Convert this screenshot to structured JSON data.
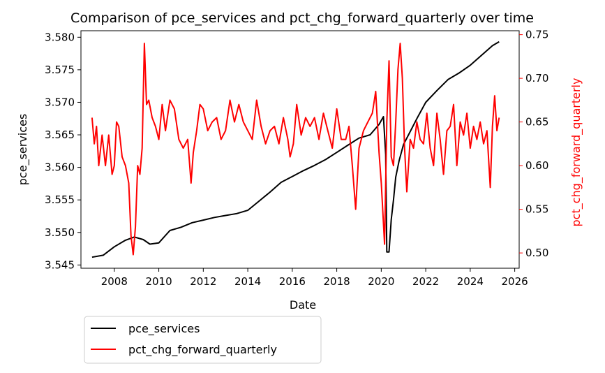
{
  "chart_data": {
    "type": "line",
    "title": "Comparison of pce_services and pct_chg_forward_quarterly over time",
    "xlabel": "Date",
    "ylabel_left": "pce_services",
    "ylabel_right": "pct_chg_forward_quarterly",
    "x_ticks": [
      "2008",
      "2010",
      "2012",
      "2014",
      "2016",
      "2018",
      "2020",
      "2022",
      "2024",
      "2026"
    ],
    "xlim": [
      2006.5,
      2026.2
    ],
    "ylim_left": [
      3.5445,
      3.581
    ],
    "ylim_right": [
      0.4825,
      0.7545
    ],
    "y_ticks_left": [
      "3.545",
      "3.550",
      "3.555",
      "3.560",
      "3.565",
      "3.570",
      "3.575",
      "3.580"
    ],
    "y_ticks_right": [
      "0.50",
      "0.55",
      "0.60",
      "0.65",
      "0.70",
      "0.75"
    ],
    "grid": false,
    "legend_position": "below-left",
    "colors": {
      "pce_services": "#000000",
      "pct_chg_forward_quarterly": "#ff0000",
      "right_axis": "#ff0000"
    },
    "series": [
      {
        "name": "pce_services",
        "axis": "left",
        "color": "#000000",
        "x": [
          2007.0,
          2007.5,
          2008.0,
          2008.5,
          2008.9,
          2009.3,
          2009.6,
          2010.0,
          2010.5,
          2011.0,
          2011.5,
          2012.0,
          2012.5,
          2013.0,
          2013.5,
          2014.0,
          2014.5,
          2015.0,
          2015.5,
          2016.0,
          2016.5,
          2017.0,
          2017.5,
          2018.0,
          2018.5,
          2019.0,
          2019.5,
          2019.9,
          2020.1,
          2020.2,
          2020.25,
          2020.35,
          2020.45,
          2020.55,
          2020.65,
          2020.8,
          2021.0,
          2021.3,
          2021.6,
          2022.0,
          2022.5,
          2023.0,
          2023.5,
          2024.0,
          2024.5,
          2025.0,
          2025.3
        ],
        "y": [
          3.5462,
          3.5465,
          3.5478,
          3.5488,
          3.5493,
          3.5489,
          3.5482,
          3.5484,
          3.5503,
          3.5508,
          3.5515,
          3.5519,
          3.5523,
          3.5526,
          3.5529,
          3.5534,
          3.5548,
          3.5562,
          3.5577,
          3.5586,
          3.5595,
          3.5603,
          3.5612,
          3.5623,
          3.5634,
          3.5645,
          3.565,
          3.5666,
          3.5678,
          3.562,
          3.547,
          3.547,
          3.552,
          3.555,
          3.5585,
          3.561,
          3.5635,
          3.5655,
          3.5675,
          3.57,
          3.5718,
          3.5735,
          3.5745,
          3.5757,
          3.5772,
          3.5787,
          3.5793
        ]
      },
      {
        "name": "pct_chg_forward_quarterly",
        "axis": "right",
        "color": "#ff0000",
        "x": [
          2007.0,
          2007.1,
          2007.2,
          2007.3,
          2007.45,
          2007.6,
          2007.75,
          2007.9,
          2008.0,
          2008.1,
          2008.2,
          2008.35,
          2008.5,
          2008.65,
          2008.75,
          2008.85,
          2008.95,
          2009.05,
          2009.15,
          2009.25,
          2009.35,
          2009.45,
          2009.55,
          2009.7,
          2009.85,
          2010.0,
          2010.15,
          2010.3,
          2010.5,
          2010.7,
          2010.9,
          2011.1,
          2011.3,
          2011.45,
          2011.55,
          2011.7,
          2011.85,
          2012.0,
          2012.2,
          2012.4,
          2012.6,
          2012.8,
          2013.0,
          2013.2,
          2013.4,
          2013.6,
          2013.8,
          2014.0,
          2014.2,
          2014.4,
          2014.6,
          2014.8,
          2015.0,
          2015.2,
          2015.4,
          2015.6,
          2015.8,
          2015.9,
          2016.05,
          2016.2,
          2016.4,
          2016.6,
          2016.8,
          2017.0,
          2017.2,
          2017.4,
          2017.6,
          2017.8,
          2018.0,
          2018.2,
          2018.4,
          2018.55,
          2018.7,
          2018.85,
          2019.0,
          2019.2,
          2019.4,
          2019.6,
          2019.75,
          2019.9,
          2020.0,
          2020.15,
          2020.25,
          2020.35,
          2020.45,
          2020.55,
          2020.65,
          2020.75,
          2020.85,
          2020.95,
          2021.05,
          2021.15,
          2021.3,
          2021.45,
          2021.6,
          2021.75,
          2021.9,
          2022.05,
          2022.2,
          2022.35,
          2022.5,
          2022.65,
          2022.8,
          2022.95,
          2023.1,
          2023.25,
          2023.4,
          2023.55,
          2023.7,
          2023.85,
          2024.0,
          2024.15,
          2024.3,
          2024.45,
          2024.6,
          2024.75,
          2024.9,
          2025.0,
          2025.1,
          2025.2,
          2025.3
        ],
        "y": [
          0.655,
          0.625,
          0.645,
          0.6,
          0.635,
          0.6,
          0.635,
          0.59,
          0.6,
          0.65,
          0.645,
          0.61,
          0.6,
          0.58,
          0.52,
          0.498,
          0.53,
          0.6,
          0.59,
          0.62,
          0.74,
          0.67,
          0.675,
          0.655,
          0.645,
          0.63,
          0.67,
          0.64,
          0.675,
          0.665,
          0.63,
          0.62,
          0.63,
          0.58,
          0.615,
          0.64,
          0.67,
          0.665,
          0.64,
          0.65,
          0.655,
          0.63,
          0.64,
          0.675,
          0.65,
          0.67,
          0.65,
          0.64,
          0.63,
          0.675,
          0.645,
          0.625,
          0.64,
          0.645,
          0.625,
          0.655,
          0.63,
          0.61,
          0.625,
          0.67,
          0.635,
          0.655,
          0.645,
          0.655,
          0.63,
          0.66,
          0.64,
          0.62,
          0.665,
          0.63,
          0.63,
          0.645,
          0.6,
          0.55,
          0.62,
          0.64,
          0.65,
          0.66,
          0.685,
          0.615,
          0.58,
          0.51,
          0.65,
          0.72,
          0.61,
          0.6,
          0.65,
          0.71,
          0.74,
          0.7,
          0.62,
          0.57,
          0.63,
          0.62,
          0.65,
          0.63,
          0.625,
          0.66,
          0.62,
          0.6,
          0.66,
          0.63,
          0.59,
          0.64,
          0.645,
          0.67,
          0.6,
          0.65,
          0.635,
          0.66,
          0.62,
          0.645,
          0.63,
          0.65,
          0.625,
          0.64,
          0.575,
          0.645,
          0.68,
          0.64,
          0.655
        ]
      }
    ]
  }
}
